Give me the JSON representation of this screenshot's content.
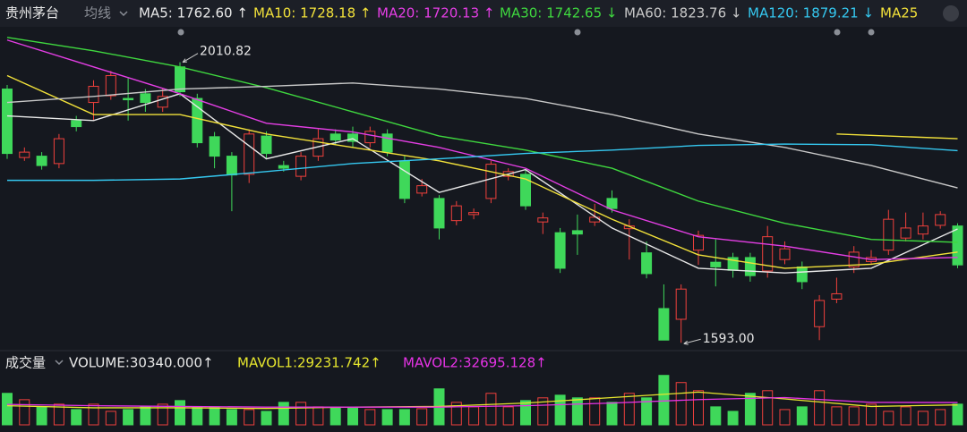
{
  "chart_data": [
    {
      "type": "candlestick",
      "title": "贵州茅台",
      "indicator": "均线",
      "up_color": "#f0403c",
      "down_color": "#3fd85a",
      "ylim": [
        1584,
        2057
      ],
      "max_label": "2010.82",
      "min_label": "1593.00",
      "open": [
        1971,
        1869,
        1871,
        1860,
        1924,
        1951,
        1961,
        1957,
        1964,
        1944,
        2004,
        1957,
        1900,
        1871,
        1844,
        1901,
        1857,
        1841,
        1871,
        1904,
        1904,
        1891,
        1904,
        1864,
        1816,
        1808,
        1775,
        1784,
        1808,
        1841,
        1844,
        1773,
        1757,
        1760,
        1773,
        1808,
        1763,
        1727,
        1644,
        1628,
        1731,
        1713,
        1720,
        1720,
        1700,
        1717,
        1706,
        1617,
        1658,
        1706,
        1714,
        1731,
        1749,
        1755,
        1768,
        1767
      ],
      "high": [
        1977,
        1884,
        1877,
        1904,
        1931,
        1984,
        1998,
        1987,
        1971,
        1973,
        2010.82,
        1964,
        1907,
        1877,
        1911,
        1908,
        1864,
        1877,
        1911,
        1911,
        1915,
        1915,
        1911,
        1871,
        1837,
        1813,
        1804,
        1793,
        1864,
        1853,
        1851,
        1787,
        1764,
        1784,
        1800,
        1820,
        1777,
        1744,
        1680,
        1680,
        1760,
        1747,
        1727,
        1727,
        1767,
        1744,
        1714,
        1664,
        1690,
        1737,
        1731,
        1791,
        1787,
        1787,
        1789,
        1771
      ],
      "low": [
        1867,
        1864,
        1851,
        1853,
        1908,
        1924,
        1955,
        1924,
        1937,
        1937,
        1960,
        1884,
        1853,
        1789,
        1831,
        1868,
        1848,
        1835,
        1864,
        1888,
        1884,
        1884,
        1871,
        1801,
        1811,
        1747,
        1768,
        1777,
        1801,
        1835,
        1791,
        1755,
        1697,
        1724,
        1767,
        1787,
        1717,
        1689,
        1597,
        1593.0,
        1709,
        1677,
        1690,
        1684,
        1690,
        1710,
        1673,
        1597,
        1652,
        1697,
        1709,
        1724,
        1744,
        1747,
        1763,
        1704
      ],
      "close": [
        1875,
        1877,
        1857,
        1897,
        1915,
        1975,
        1991,
        1955,
        1951,
        1960,
        1967,
        1891,
        1871,
        1843,
        1904,
        1875,
        1853,
        1871,
        1897,
        1895,
        1893,
        1908,
        1877,
        1808,
        1827,
        1764,
        1797,
        1787,
        1859,
        1848,
        1797,
        1779,
        1704,
        1755,
        1780,
        1793,
        1767,
        1696,
        1597,
        1673,
        1753,
        1706,
        1701,
        1693,
        1751,
        1733,
        1684,
        1656,
        1666,
        1728,
        1720,
        1777,
        1764,
        1767,
        1784,
        1709
      ],
      "series": [
        {
          "name": "MA5: 1762.60 ↑",
          "color": "#e8e8e8",
          "x": [
            0,
            5,
            10,
            15,
            20,
            25,
            30,
            35,
            40,
            45,
            50,
            55
          ],
          "values": [
            1931,
            1924,
            1964,
            1867,
            1897,
            1817,
            1851,
            1764,
            1704,
            1697,
            1704,
            1762.6
          ]
        },
        {
          "name": "MA10: 1728.18 ↑",
          "color": "#f2e13a",
          "x": [
            0,
            5,
            10,
            15,
            20,
            25,
            30,
            35,
            40,
            45,
            50,
            55
          ],
          "values": [
            1991,
            1933,
            1933,
            1904,
            1884,
            1864,
            1837,
            1777,
            1724,
            1704,
            1710,
            1728.18
          ]
        },
        {
          "name": "MA20: 1720.13 ↑",
          "color": "#e43ee4",
          "x": [
            0,
            5,
            10,
            15,
            20,
            25,
            30,
            35,
            40,
            45,
            50,
            55
          ],
          "values": [
            2044,
            2004,
            1964,
            1920,
            1907,
            1884,
            1853,
            1791,
            1751,
            1737,
            1717,
            1720.13
          ]
        },
        {
          "name": "MA30: 1742.65 ↓",
          "color": "#3fd83f",
          "x": [
            0,
            5,
            10,
            15,
            20,
            25,
            30,
            35,
            40,
            45,
            50,
            55
          ],
          "values": [
            2048,
            2028,
            2004,
            1973,
            1937,
            1901,
            1880,
            1853,
            1804,
            1771,
            1747,
            1742.65
          ]
        },
        {
          "name": "MA60: 1823.76 ↓",
          "color": "#c8c8c8",
          "x": [
            0,
            5,
            10,
            15,
            20,
            25,
            30,
            35,
            40,
            45,
            50,
            55
          ],
          "values": [
            1951,
            1960,
            1971,
            1975,
            1980,
            1971,
            1957,
            1933,
            1904,
            1884,
            1857,
            1823.76
          ]
        },
        {
          "name": "MA120: 1879.21 ↓",
          "color": "#35c8f0",
          "x": [
            0,
            5,
            10,
            15,
            20,
            25,
            30,
            35,
            40,
            45,
            50,
            55
          ],
          "values": [
            1835,
            1835,
            1837,
            1848,
            1860,
            1867,
            1875,
            1880,
            1887,
            1889,
            1888,
            1879.21
          ]
        },
        {
          "name": "MA25",
          "color": "#f2e13a",
          "x": [
            48,
            55
          ],
          "values": [
            1904,
            1897
          ]
        }
      ]
    },
    {
      "type": "bar",
      "title": "成交量",
      "indicator": "VOLUME:30340.000↑",
      "ylim": [
        0,
        80000
      ],
      "values": [
        46200,
        36900,
        26400,
        30300,
        22400,
        30300,
        19800,
        22400,
        26400,
        30300,
        35600,
        26400,
        26400,
        22400,
        22400,
        19800,
        33000,
        33000,
        26400,
        25100,
        25100,
        22400,
        22400,
        22400,
        23700,
        52800,
        33000,
        26400,
        46200,
        26400,
        35600,
        39600,
        43500,
        39600,
        39600,
        33000,
        46200,
        39600,
        72500,
        62000,
        50100,
        26400,
        19800,
        46200,
        50100,
        22400,
        26400,
        50100,
        26400,
        26400,
        30300,
        19800,
        26400,
        19800,
        22400,
        30340
      ],
      "series": [
        {
          "name": "MAVOL1:29231.742↑",
          "color": "#e6e62e",
          "x": [
            0,
            5,
            10,
            15,
            20,
            25,
            30,
            35,
            40,
            45,
            50,
            55
          ],
          "values": [
            28000,
            25000,
            25000,
            24000,
            26000,
            27000,
            32000,
            40000,
            48000,
            38000,
            27000,
            29231.742
          ]
        },
        {
          "name": "MAVOL2:32695.128↑",
          "color": "#e633e6",
          "x": [
            0,
            5,
            10,
            15,
            20,
            25,
            30,
            35,
            40,
            45,
            50,
            55
          ],
          "values": [
            30000,
            28000,
            27000,
            26000,
            26000,
            26000,
            28000,
            32000,
            37000,
            40000,
            33000,
            32695.128
          ]
        }
      ]
    }
  ]
}
